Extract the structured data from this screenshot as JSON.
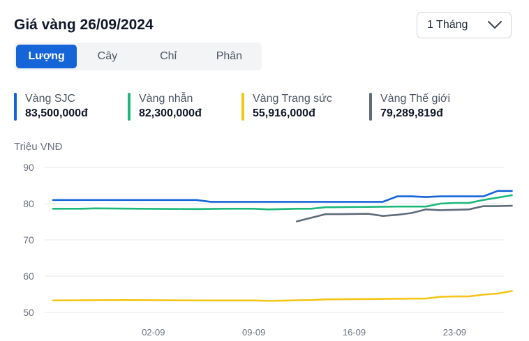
{
  "title": "Giá vàng 26/09/2024",
  "period": {
    "selected": "1 Tháng"
  },
  "tabs": [
    "Lượng",
    "Cây",
    "Chỉ",
    "Phân"
  ],
  "active_tab": 0,
  "legend": [
    {
      "name": "Vàng SJC",
      "value": "83,500,000đ",
      "color": "#1565d8"
    },
    {
      "name": "Vàng nhẫn",
      "value": "82,300,000đ",
      "color": "#1db87c"
    },
    {
      "name": "Vàng Trang sức",
      "value": "55,916,000đ",
      "color": "#f5c518"
    },
    {
      "name": "Vàng Thế giới",
      "value": "79,289,819đ",
      "color": "#5f6b7a"
    }
  ],
  "chart_data": {
    "type": "line",
    "ylabel": "Triệu VNĐ",
    "ylim": [
      50,
      90
    ],
    "yticks": [
      90,
      80,
      70,
      60,
      50
    ],
    "grid": true,
    "x_start": "2024-08-26",
    "x_end": "2024-09-26",
    "xticks": [
      {
        "label": "02-09",
        "date": "2024-09-02"
      },
      {
        "label": "09-09",
        "date": "2024-09-09"
      },
      {
        "label": "16-09",
        "date": "2024-09-16"
      },
      {
        "label": "23-09",
        "date": "2024-09-23"
      }
    ],
    "series": [
      {
        "name": "Vàng SJC",
        "color": "#1565d8",
        "points": [
          [
            "2024-08-26",
            81.0
          ],
          [
            "2024-08-31",
            81.0
          ],
          [
            "2024-09-05",
            81.0
          ],
          [
            "2024-09-06",
            80.5
          ],
          [
            "2024-09-10",
            80.5
          ],
          [
            "2024-09-15",
            80.5
          ],
          [
            "2024-09-18",
            80.5
          ],
          [
            "2024-09-19",
            82.0
          ],
          [
            "2024-09-20",
            82.0
          ],
          [
            "2024-09-21",
            81.8
          ],
          [
            "2024-09-22",
            82.0
          ],
          [
            "2024-09-25",
            82.0
          ],
          [
            "2024-09-26",
            83.5
          ],
          [
            "2024-09-27",
            83.5
          ]
        ]
      },
      {
        "name": "Vàng nhẫn",
        "color": "#1db87c",
        "points": [
          [
            "2024-08-26",
            78.6
          ],
          [
            "2024-08-28",
            78.6
          ],
          [
            "2024-08-29",
            78.7
          ],
          [
            "2024-09-01",
            78.6
          ],
          [
            "2024-09-05",
            78.5
          ],
          [
            "2024-09-07",
            78.6
          ],
          [
            "2024-09-09",
            78.6
          ],
          [
            "2024-09-10",
            78.4
          ],
          [
            "2024-09-12",
            78.6
          ],
          [
            "2024-09-13",
            78.6
          ],
          [
            "2024-09-14",
            79.0
          ],
          [
            "2024-09-17",
            79.1
          ],
          [
            "2024-09-19",
            79.2
          ],
          [
            "2024-09-21",
            79.2
          ],
          [
            "2024-09-22",
            80.0
          ],
          [
            "2024-09-23",
            80.2
          ],
          [
            "2024-09-24",
            80.2
          ],
          [
            "2024-09-25",
            81.0
          ],
          [
            "2024-09-27",
            82.3
          ]
        ]
      },
      {
        "name": "Vàng Trang sức",
        "color": "#f5c518",
        "points": [
          [
            "2024-08-26",
            53.3
          ],
          [
            "2024-08-31",
            53.4
          ],
          [
            "2024-09-05",
            53.3
          ],
          [
            "2024-09-09",
            53.3
          ],
          [
            "2024-09-10",
            53.2
          ],
          [
            "2024-09-13",
            53.4
          ],
          [
            "2024-09-14",
            53.6
          ],
          [
            "2024-09-17",
            53.7
          ],
          [
            "2024-09-20",
            53.8
          ],
          [
            "2024-09-21",
            53.8
          ],
          [
            "2024-09-22",
            54.3
          ],
          [
            "2024-09-23",
            54.4
          ],
          [
            "2024-09-24",
            54.4
          ],
          [
            "2024-09-25",
            54.9
          ],
          [
            "2024-09-26",
            55.2
          ],
          [
            "2024-09-27",
            55.9
          ]
        ]
      },
      {
        "name": "Vàng Thế giới",
        "color": "#5f6b7a",
        "points": [
          [
            "2024-09-12",
            75.1
          ],
          [
            "2024-09-14",
            77.1
          ],
          [
            "2024-09-15",
            77.1
          ],
          [
            "2024-09-17",
            77.2
          ],
          [
            "2024-09-18",
            76.6
          ],
          [
            "2024-09-19",
            76.9
          ],
          [
            "2024-09-20",
            77.4
          ],
          [
            "2024-09-21",
            78.4
          ],
          [
            "2024-09-22",
            78.2
          ],
          [
            "2024-09-24",
            78.4
          ],
          [
            "2024-09-25",
            79.3
          ],
          [
            "2024-09-26",
            79.3
          ],
          [
            "2024-09-27",
            79.4
          ]
        ]
      }
    ]
  }
}
